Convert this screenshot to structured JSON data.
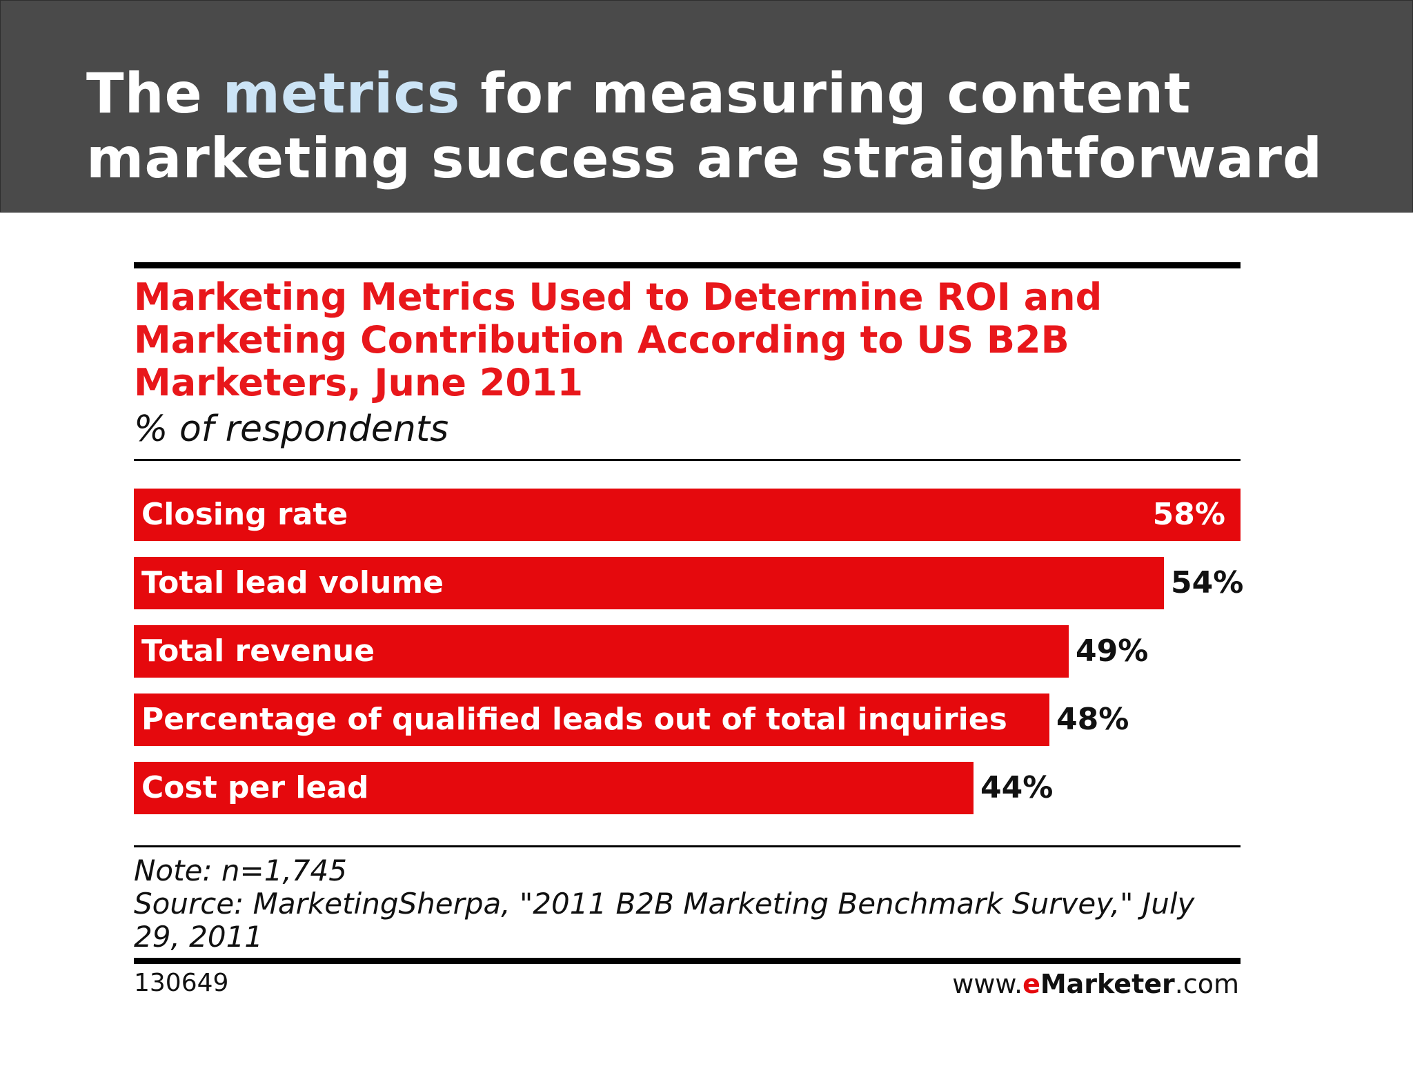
{
  "slide": {
    "headline_parts": [
      "The ",
      "metrics",
      " for measuring content",
      "marketing success are straightforward"
    ]
  },
  "chart_data": {
    "type": "bar",
    "orientation": "horizontal",
    "title": "Marketing Metrics Used to Determine ROI and Marketing Contribution According to US B2B Marketers, June 2011",
    "title_lines": [
      "Marketing Metrics Used to Determine ROI and",
      "Marketing Contribution According to US B2B",
      "Marketers, June 2011"
    ],
    "subtitle": "% of respondents",
    "categories": [
      "Closing rate",
      "Total lead volume",
      "Total revenue",
      "Percentage of qualified leads out of total inquiries",
      "Cost per lead"
    ],
    "values": [
      58,
      54,
      49,
      48,
      44
    ],
    "value_labels": [
      "58%",
      "54%",
      "49%",
      "48%",
      "44%"
    ],
    "xlim": [
      0,
      58
    ],
    "bar_color": "#e5090d",
    "grid": false,
    "legend": "none"
  },
  "footer": {
    "note": "Note: n=1,745",
    "source_lines": [
      "Source: MarketingSherpa, \"2011 B2B Marketing Benchmark Survey,\" July",
      "29, 2011"
    ],
    "chart_id": "130649",
    "site_prefix": "www.",
    "site_e": "e",
    "site_brand": "Marketer",
    "site_suffix": ".com"
  }
}
